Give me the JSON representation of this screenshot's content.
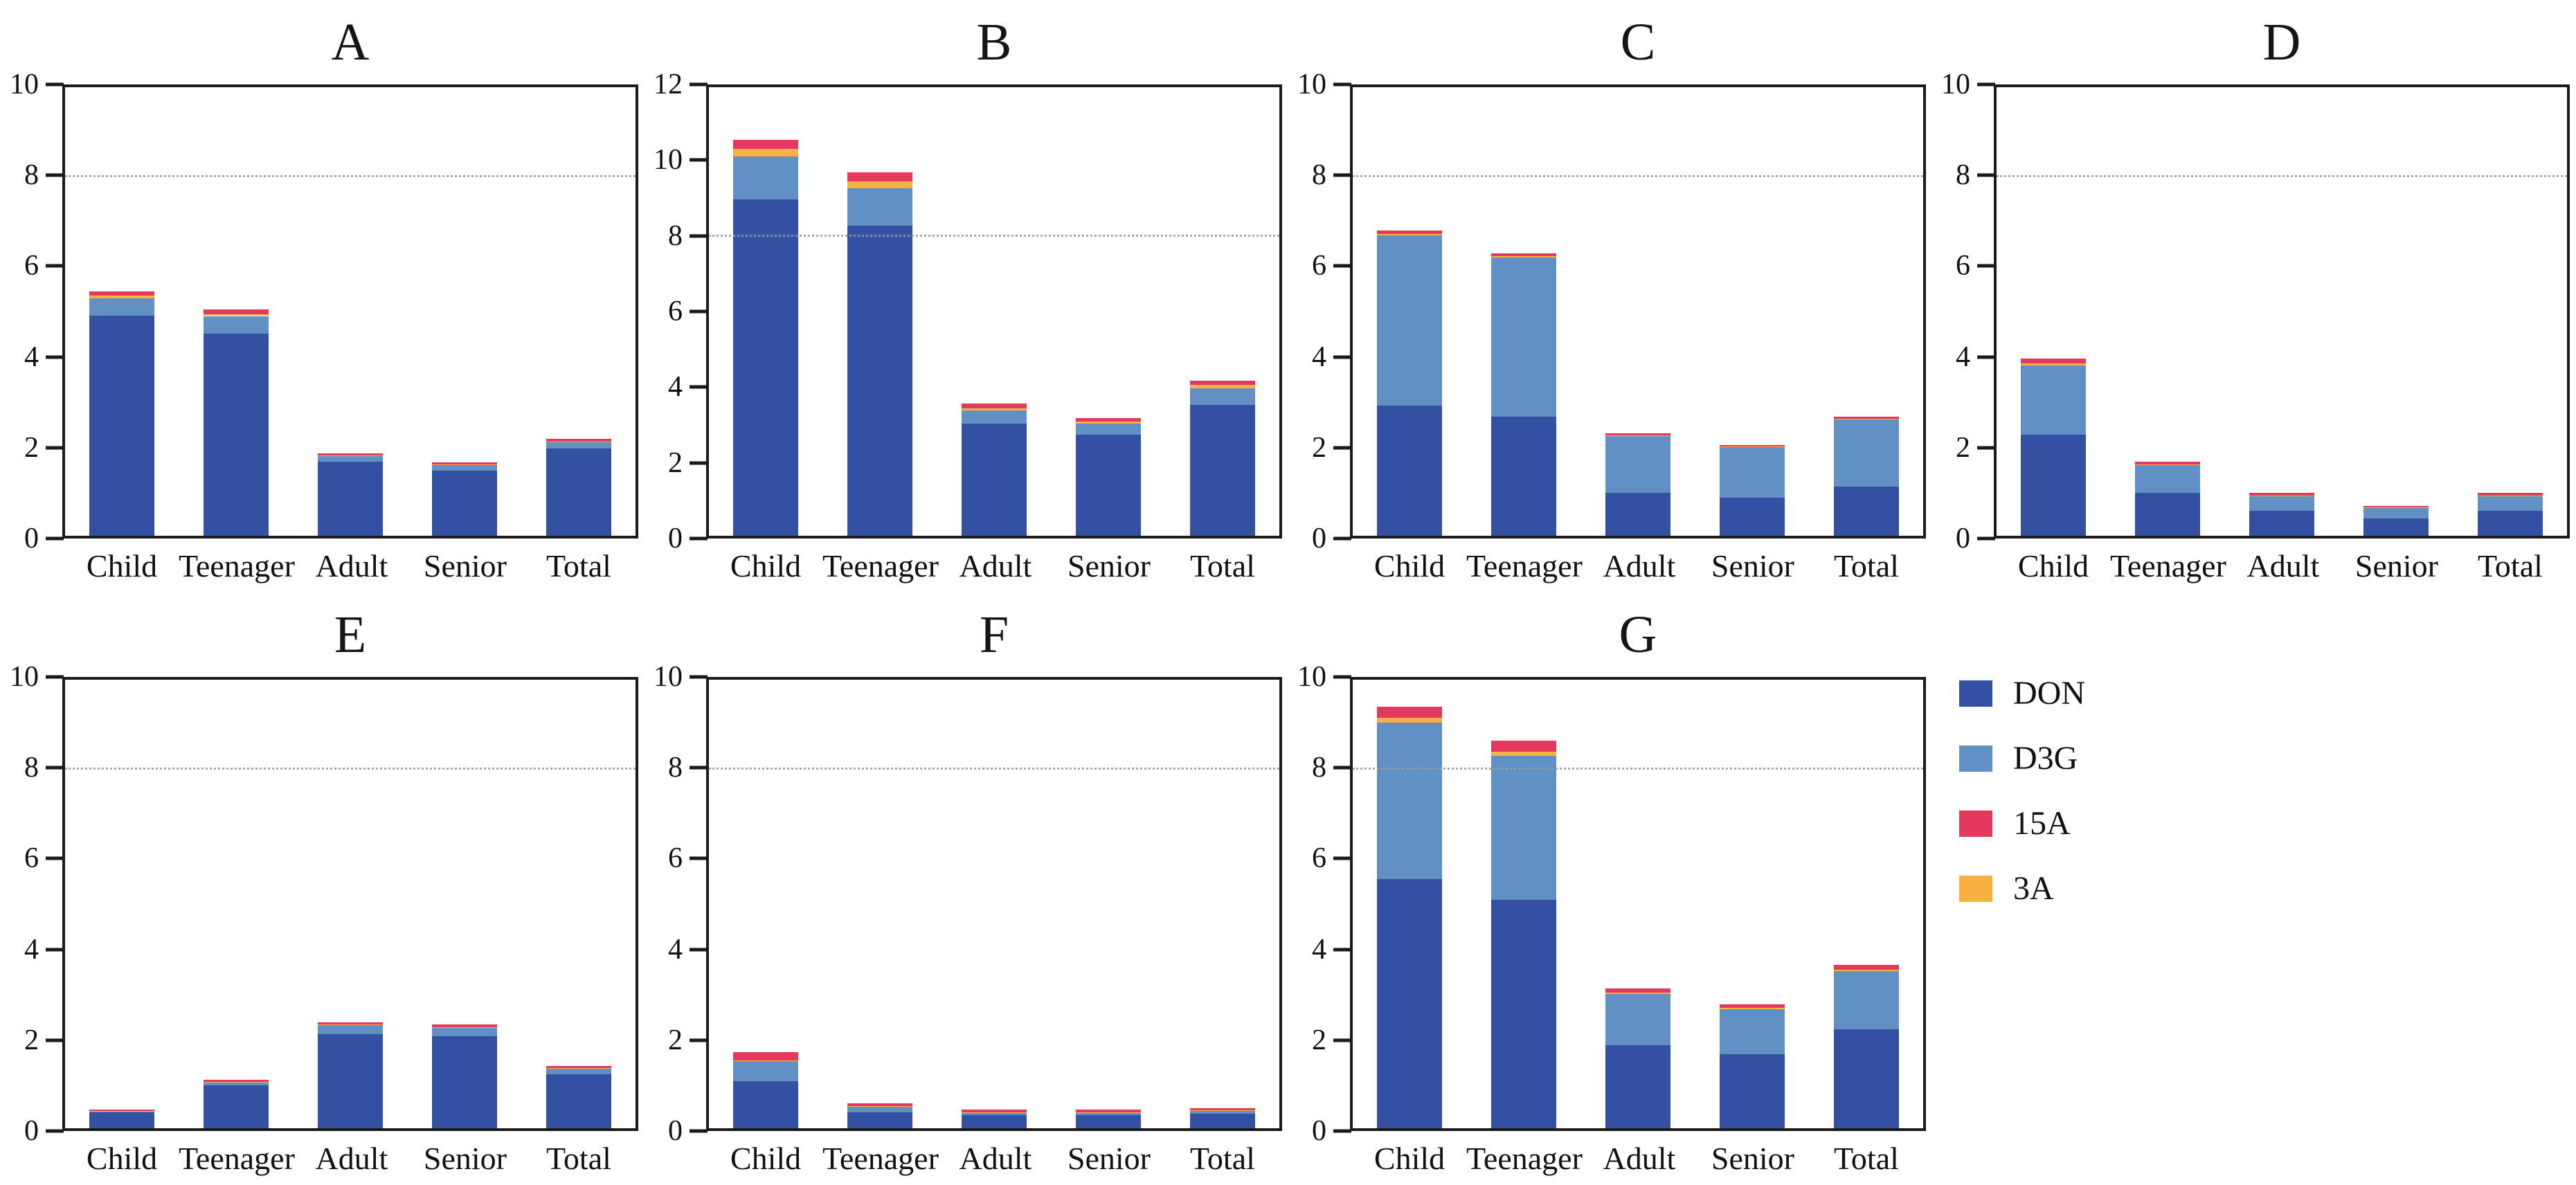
{
  "figure": {
    "background": "#ffffff"
  },
  "legend": {
    "position": "right-of-panel-G",
    "items": [
      {
        "label": "DON",
        "color": "#3350a3"
      },
      {
        "label": "D3G",
        "color": "#6191c4"
      },
      {
        "label": "15A",
        "color": "#e4395f"
      },
      {
        "label": "3A",
        "color": "#fbb042"
      }
    ]
  },
  "stack_order": [
    "DON",
    "D3G",
    "3A",
    "15A"
  ],
  "axis": {
    "line_color": "#1a1a1a",
    "gridline_color": "#9b9b9b",
    "gridline_style": "dotted"
  },
  "chart_data": [
    {
      "type": "bar",
      "stacked": true,
      "title": "A",
      "categories": [
        "Child",
        "Teenager",
        "Adult",
        "Senior",
        "Total"
      ],
      "ylim": [
        0,
        10
      ],
      "yticks": [
        0,
        2,
        4,
        6,
        8,
        10
      ],
      "gridline_y": 8,
      "series": [
        {
          "name": "DON",
          "values": [
            4.9,
            4.5,
            1.65,
            1.45,
            1.95
          ]
        },
        {
          "name": "D3G",
          "values": [
            0.4,
            0.4,
            0.12,
            0.12,
            0.13
          ]
        },
        {
          "name": "3A",
          "values": [
            0.05,
            0.04,
            0.02,
            0.02,
            0.02
          ]
        },
        {
          "name": "15A",
          "values": [
            0.1,
            0.1,
            0.05,
            0.05,
            0.06
          ]
        }
      ]
    },
    {
      "type": "bar",
      "stacked": true,
      "title": "B",
      "categories": [
        "Child",
        "Teenager",
        "Adult",
        "Senior",
        "Total"
      ],
      "ylim": [
        0,
        12
      ],
      "yticks": [
        0,
        2,
        4,
        6,
        8,
        10,
        12
      ],
      "gridline_y": 8,
      "series": [
        {
          "name": "DON",
          "values": [
            9.0,
            8.3,
            3.0,
            2.7,
            3.5
          ]
        },
        {
          "name": "D3G",
          "values": [
            1.15,
            1.0,
            0.35,
            0.3,
            0.45
          ]
        },
        {
          "name": "3A",
          "values": [
            0.2,
            0.18,
            0.06,
            0.05,
            0.08
          ]
        },
        {
          "name": "15A",
          "values": [
            0.25,
            0.25,
            0.12,
            0.1,
            0.12
          ]
        }
      ]
    },
    {
      "type": "bar",
      "stacked": true,
      "title": "C",
      "categories": [
        "Child",
        "Teenager",
        "Adult",
        "Senior",
        "Total"
      ],
      "ylim": [
        0,
        10
      ],
      "yticks": [
        0,
        2,
        4,
        6,
        8,
        10
      ],
      "gridline_y": 8,
      "series": [
        {
          "name": "DON",
          "values": [
            2.9,
            2.65,
            0.95,
            0.85,
            1.1
          ]
        },
        {
          "name": "D3G",
          "values": [
            3.8,
            3.55,
            1.28,
            1.13,
            1.5
          ]
        },
        {
          "name": "3A",
          "values": [
            0.03,
            0.03,
            0.01,
            0.01,
            0.01
          ]
        },
        {
          "name": "15A",
          "values": [
            0.08,
            0.07,
            0.04,
            0.03,
            0.05
          ]
        }
      ]
    },
    {
      "type": "bar",
      "stacked": true,
      "title": "D",
      "categories": [
        "Child",
        "Teenager",
        "Adult",
        "Senior",
        "Total"
      ],
      "ylim": [
        0,
        10
      ],
      "yticks": [
        0,
        2,
        4,
        6,
        8,
        10
      ],
      "gridline_y": 8,
      "series": [
        {
          "name": "DON",
          "values": [
            2.25,
            0.95,
            0.55,
            0.38,
            0.55
          ]
        },
        {
          "name": "D3G",
          "values": [
            1.55,
            0.62,
            0.33,
            0.24,
            0.33
          ]
        },
        {
          "name": "3A",
          "values": [
            0.05,
            0.02,
            0.02,
            0.01,
            0.02
          ]
        },
        {
          "name": "15A",
          "values": [
            0.1,
            0.06,
            0.05,
            0.04,
            0.05
          ]
        }
      ]
    },
    {
      "type": "bar",
      "stacked": true,
      "title": "E",
      "categories": [
        "Child",
        "Teenager",
        "Adult",
        "Senior",
        "Total"
      ],
      "ylim": [
        0,
        10
      ],
      "yticks": [
        0,
        2,
        4,
        6,
        8,
        10
      ],
      "gridline_y": 8,
      "series": [
        {
          "name": "DON",
          "values": [
            0.35,
            0.95,
            2.1,
            2.05,
            1.2
          ]
        },
        {
          "name": "D3G",
          "values": [
            0.03,
            0.08,
            0.2,
            0.2,
            0.13
          ]
        },
        {
          "name": "3A",
          "values": [
            0.01,
            0.01,
            0.01,
            0.01,
            0.01
          ]
        },
        {
          "name": "15A",
          "values": [
            0.03,
            0.04,
            0.05,
            0.05,
            0.05
          ]
        }
      ]
    },
    {
      "type": "bar",
      "stacked": true,
      "title": "F",
      "categories": [
        "Child",
        "Teenager",
        "Adult",
        "Senior",
        "Total"
      ],
      "ylim": [
        0,
        10
      ],
      "yticks": [
        0,
        2,
        4,
        6,
        8,
        10
      ],
      "gridline_y": 8,
      "series": [
        {
          "name": "DON",
          "values": [
            1.05,
            0.35,
            0.3,
            0.3,
            0.32
          ]
        },
        {
          "name": "D3G",
          "values": [
            0.45,
            0.13,
            0.05,
            0.05,
            0.07
          ]
        },
        {
          "name": "3A",
          "values": [
            0.02,
            0.01,
            0.01,
            0.01,
            0.01
          ]
        },
        {
          "name": "15A",
          "values": [
            0.18,
            0.06,
            0.05,
            0.05,
            0.05
          ]
        }
      ]
    },
    {
      "type": "bar",
      "stacked": true,
      "title": "G",
      "categories": [
        "Child",
        "Teenager",
        "Adult",
        "Senior",
        "Total"
      ],
      "ylim": [
        0,
        10
      ],
      "yticks": [
        0,
        2,
        4,
        6,
        8,
        10
      ],
      "gridline_y": 8,
      "series": [
        {
          "name": "DON",
          "values": [
            5.55,
            5.1,
            1.85,
            1.65,
            2.2
          ]
        },
        {
          "name": "D3G",
          "values": [
            3.5,
            3.2,
            1.15,
            1.0,
            1.3
          ]
        },
        {
          "name": "3A",
          "values": [
            0.1,
            0.1,
            0.03,
            0.03,
            0.04
          ]
        },
        {
          "name": "15A",
          "values": [
            0.25,
            0.25,
            0.08,
            0.08,
            0.1
          ]
        }
      ]
    }
  ]
}
